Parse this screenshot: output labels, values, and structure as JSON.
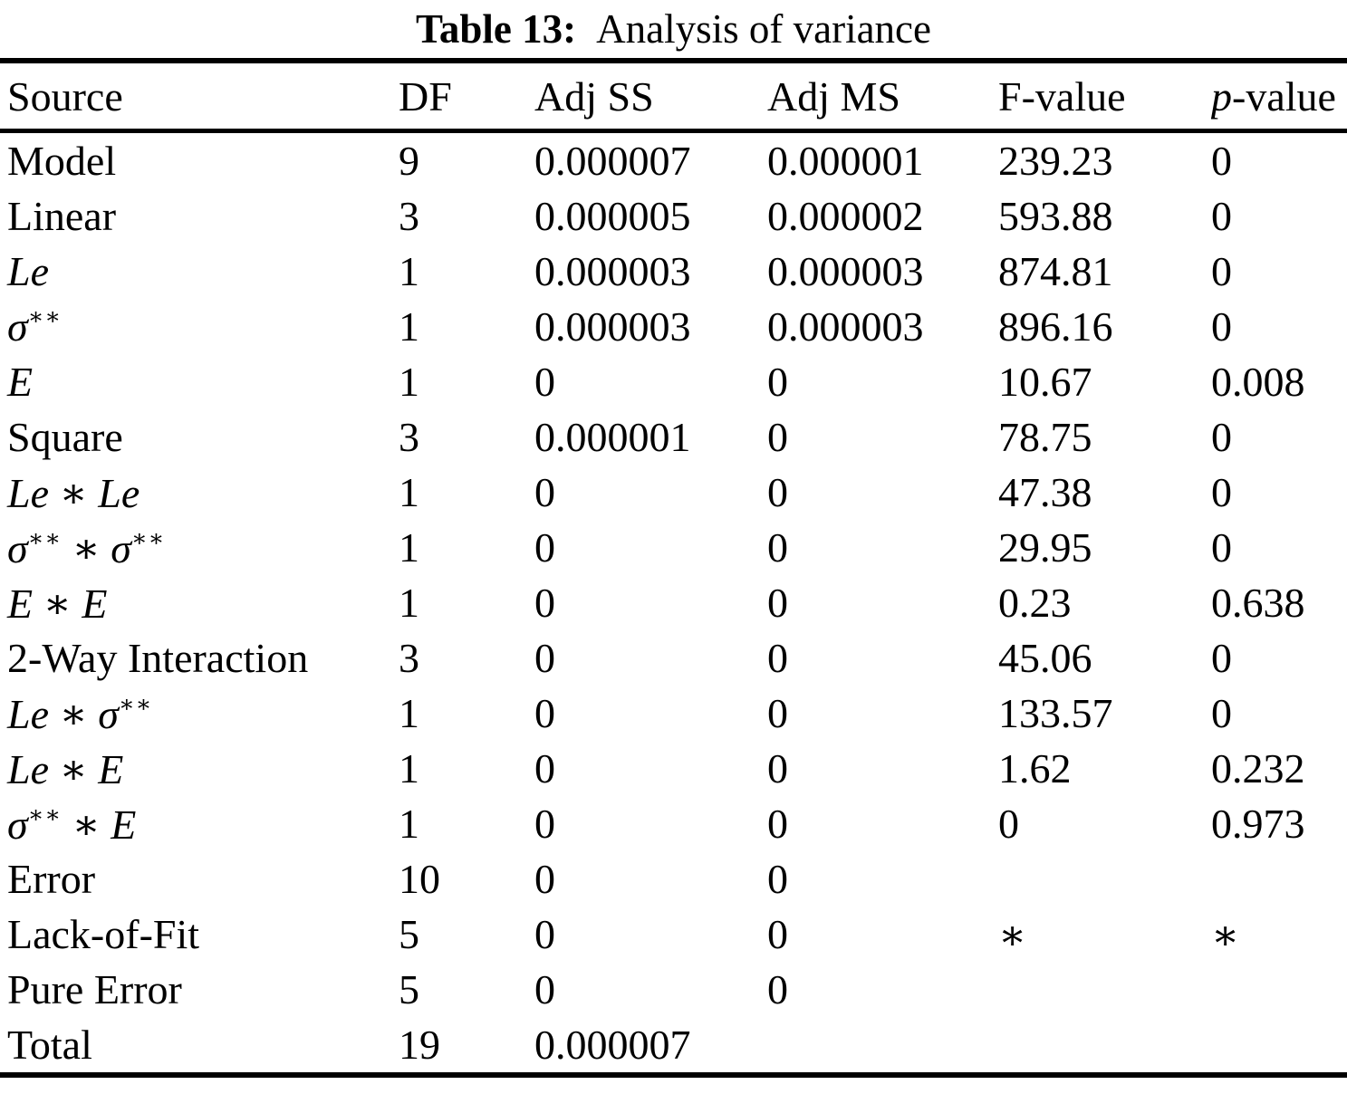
{
  "title": {
    "label": "Table 13:",
    "text": "Analysis of variance"
  },
  "table": {
    "headers": [
      [
        {
          "text": "Source"
        }
      ],
      [
        {
          "text": "DF"
        }
      ],
      [
        {
          "text": "Adj SS"
        }
      ],
      [
        {
          "text": "Adj MS"
        }
      ],
      [
        {
          "text": "F-value"
        }
      ],
      [
        {
          "text": "p",
          "italic": true
        },
        {
          "text": "-value"
        }
      ]
    ],
    "rows": [
      {
        "source": [
          {
            "text": "Model"
          }
        ],
        "df": "9",
        "adj_ss": "0.000007",
        "adj_ms": "0.000001",
        "f": "239.23",
        "p": "0"
      },
      {
        "source": [
          {
            "text": "Linear"
          }
        ],
        "df": "3",
        "adj_ss": "0.000005",
        "adj_ms": "0.000002",
        "f": "593.88",
        "p": "0"
      },
      {
        "source": [
          {
            "text": "Le",
            "italic": true
          }
        ],
        "df": "1",
        "adj_ss": "0.000003",
        "adj_ms": "0.000003",
        "f": "874.81",
        "p": "0"
      },
      {
        "source": [
          {
            "text": "σ",
            "italic": true
          },
          {
            "text": "∗∗",
            "sup": true
          }
        ],
        "df": "1",
        "adj_ss": "0.000003",
        "adj_ms": "0.000003",
        "f": "896.16",
        "p": "0"
      },
      {
        "source": [
          {
            "text": "E",
            "italic": true
          }
        ],
        "df": "1",
        "adj_ss": "0",
        "adj_ms": "0",
        "f": "10.67",
        "p": "0.008"
      },
      {
        "source": [
          {
            "text": "Square"
          }
        ],
        "df": "3",
        "adj_ss": "0.000001",
        "adj_ms": "0",
        "f": "78.75",
        "p": "0"
      },
      {
        "source": [
          {
            "text": "Le",
            "italic": true
          },
          {
            "text": " ∗ "
          },
          {
            "text": "Le",
            "italic": true
          }
        ],
        "df": "1",
        "adj_ss": "0",
        "adj_ms": "0",
        "f": "47.38",
        "p": "0"
      },
      {
        "source": [
          {
            "text": "σ",
            "italic": true
          },
          {
            "text": "∗∗",
            "sup": true
          },
          {
            "text": " ∗ "
          },
          {
            "text": "σ",
            "italic": true
          },
          {
            "text": "∗∗",
            "sup": true
          }
        ],
        "df": "1",
        "adj_ss": "0",
        "adj_ms": "0",
        "f": "29.95",
        "p": "0"
      },
      {
        "source": [
          {
            "text": "E",
            "italic": true
          },
          {
            "text": " ∗ "
          },
          {
            "text": "E",
            "italic": true
          }
        ],
        "df": "1",
        "adj_ss": "0",
        "adj_ms": "0",
        "f": "0.23",
        "p": "0.638"
      },
      {
        "source": [
          {
            "text": "2-Way Interaction"
          }
        ],
        "df": "3",
        "adj_ss": "0",
        "adj_ms": "0",
        "f": "45.06",
        "p": "0"
      },
      {
        "source": [
          {
            "text": "Le",
            "italic": true
          },
          {
            "text": " ∗ "
          },
          {
            "text": "σ",
            "italic": true
          },
          {
            "text": "∗∗",
            "sup": true
          }
        ],
        "df": "1",
        "adj_ss": "0",
        "adj_ms": "0",
        "f": "133.57",
        "p": "0"
      },
      {
        "source": [
          {
            "text": "Le",
            "italic": true
          },
          {
            "text": " ∗ "
          },
          {
            "text": "E",
            "italic": true
          }
        ],
        "df": "1",
        "adj_ss": "0",
        "adj_ms": "0",
        "f": "1.62",
        "p": "0.232"
      },
      {
        "source": [
          {
            "text": "σ",
            "italic": true
          },
          {
            "text": "∗∗",
            "sup": true
          },
          {
            "text": " ∗ "
          },
          {
            "text": "E",
            "italic": true
          }
        ],
        "df": "1",
        "adj_ss": "0",
        "adj_ms": "0",
        "f": "0",
        "p": "0.973"
      },
      {
        "source": [
          {
            "text": "Error"
          }
        ],
        "df": "10",
        "adj_ss": "0",
        "adj_ms": "0",
        "f": "",
        "p": ""
      },
      {
        "source": [
          {
            "text": "Lack-of-Fit"
          }
        ],
        "df": "5",
        "adj_ss": "0",
        "adj_ms": "0",
        "f": "∗",
        "p": "∗"
      },
      {
        "source": [
          {
            "text": "Pure Error"
          }
        ],
        "df": "5",
        "adj_ss": "0",
        "adj_ms": "0",
        "f": "",
        "p": ""
      },
      {
        "source": [
          {
            "text": "Total"
          }
        ],
        "df": "19",
        "adj_ss": "0.000007",
        "adj_ms": "",
        "f": "",
        "p": ""
      }
    ]
  }
}
